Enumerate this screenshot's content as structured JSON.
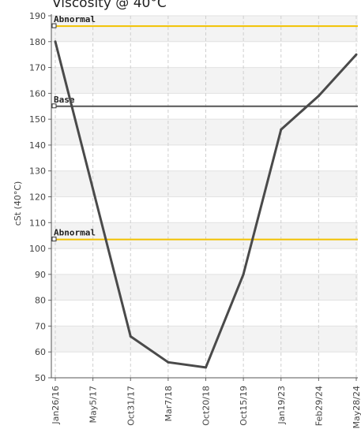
{
  "chart_data": {
    "type": "line",
    "title": "Viscosity @ 40°C",
    "ylabel": "cSt (40°C)",
    "xlabel": "",
    "ylim": [
      50,
      190
    ],
    "yticks": [
      50,
      60,
      70,
      80,
      90,
      100,
      110,
      120,
      130,
      140,
      150,
      160,
      170,
      180,
      190
    ],
    "categories": [
      "Jan26/16",
      "May5/17",
      "Oct31/17",
      "Mar7/18",
      "Oct20/18",
      "Oct15/19",
      "Jan19/23",
      "Feb29/24",
      "May28/24"
    ],
    "series": [
      {
        "values": [
          180,
          null,
          66,
          56,
          54,
          90,
          146,
          159,
          175
        ],
        "color": "#4a4a4a"
      }
    ],
    "reference_lines": [
      {
        "label": "Abnormal",
        "value": 186,
        "color": "#f2c200"
      },
      {
        "label": "Base",
        "value": 155,
        "color": "#555555"
      },
      {
        "label": "Abnormal",
        "value": 103.5,
        "color": "#f2c200"
      }
    ],
    "grid": true
  }
}
